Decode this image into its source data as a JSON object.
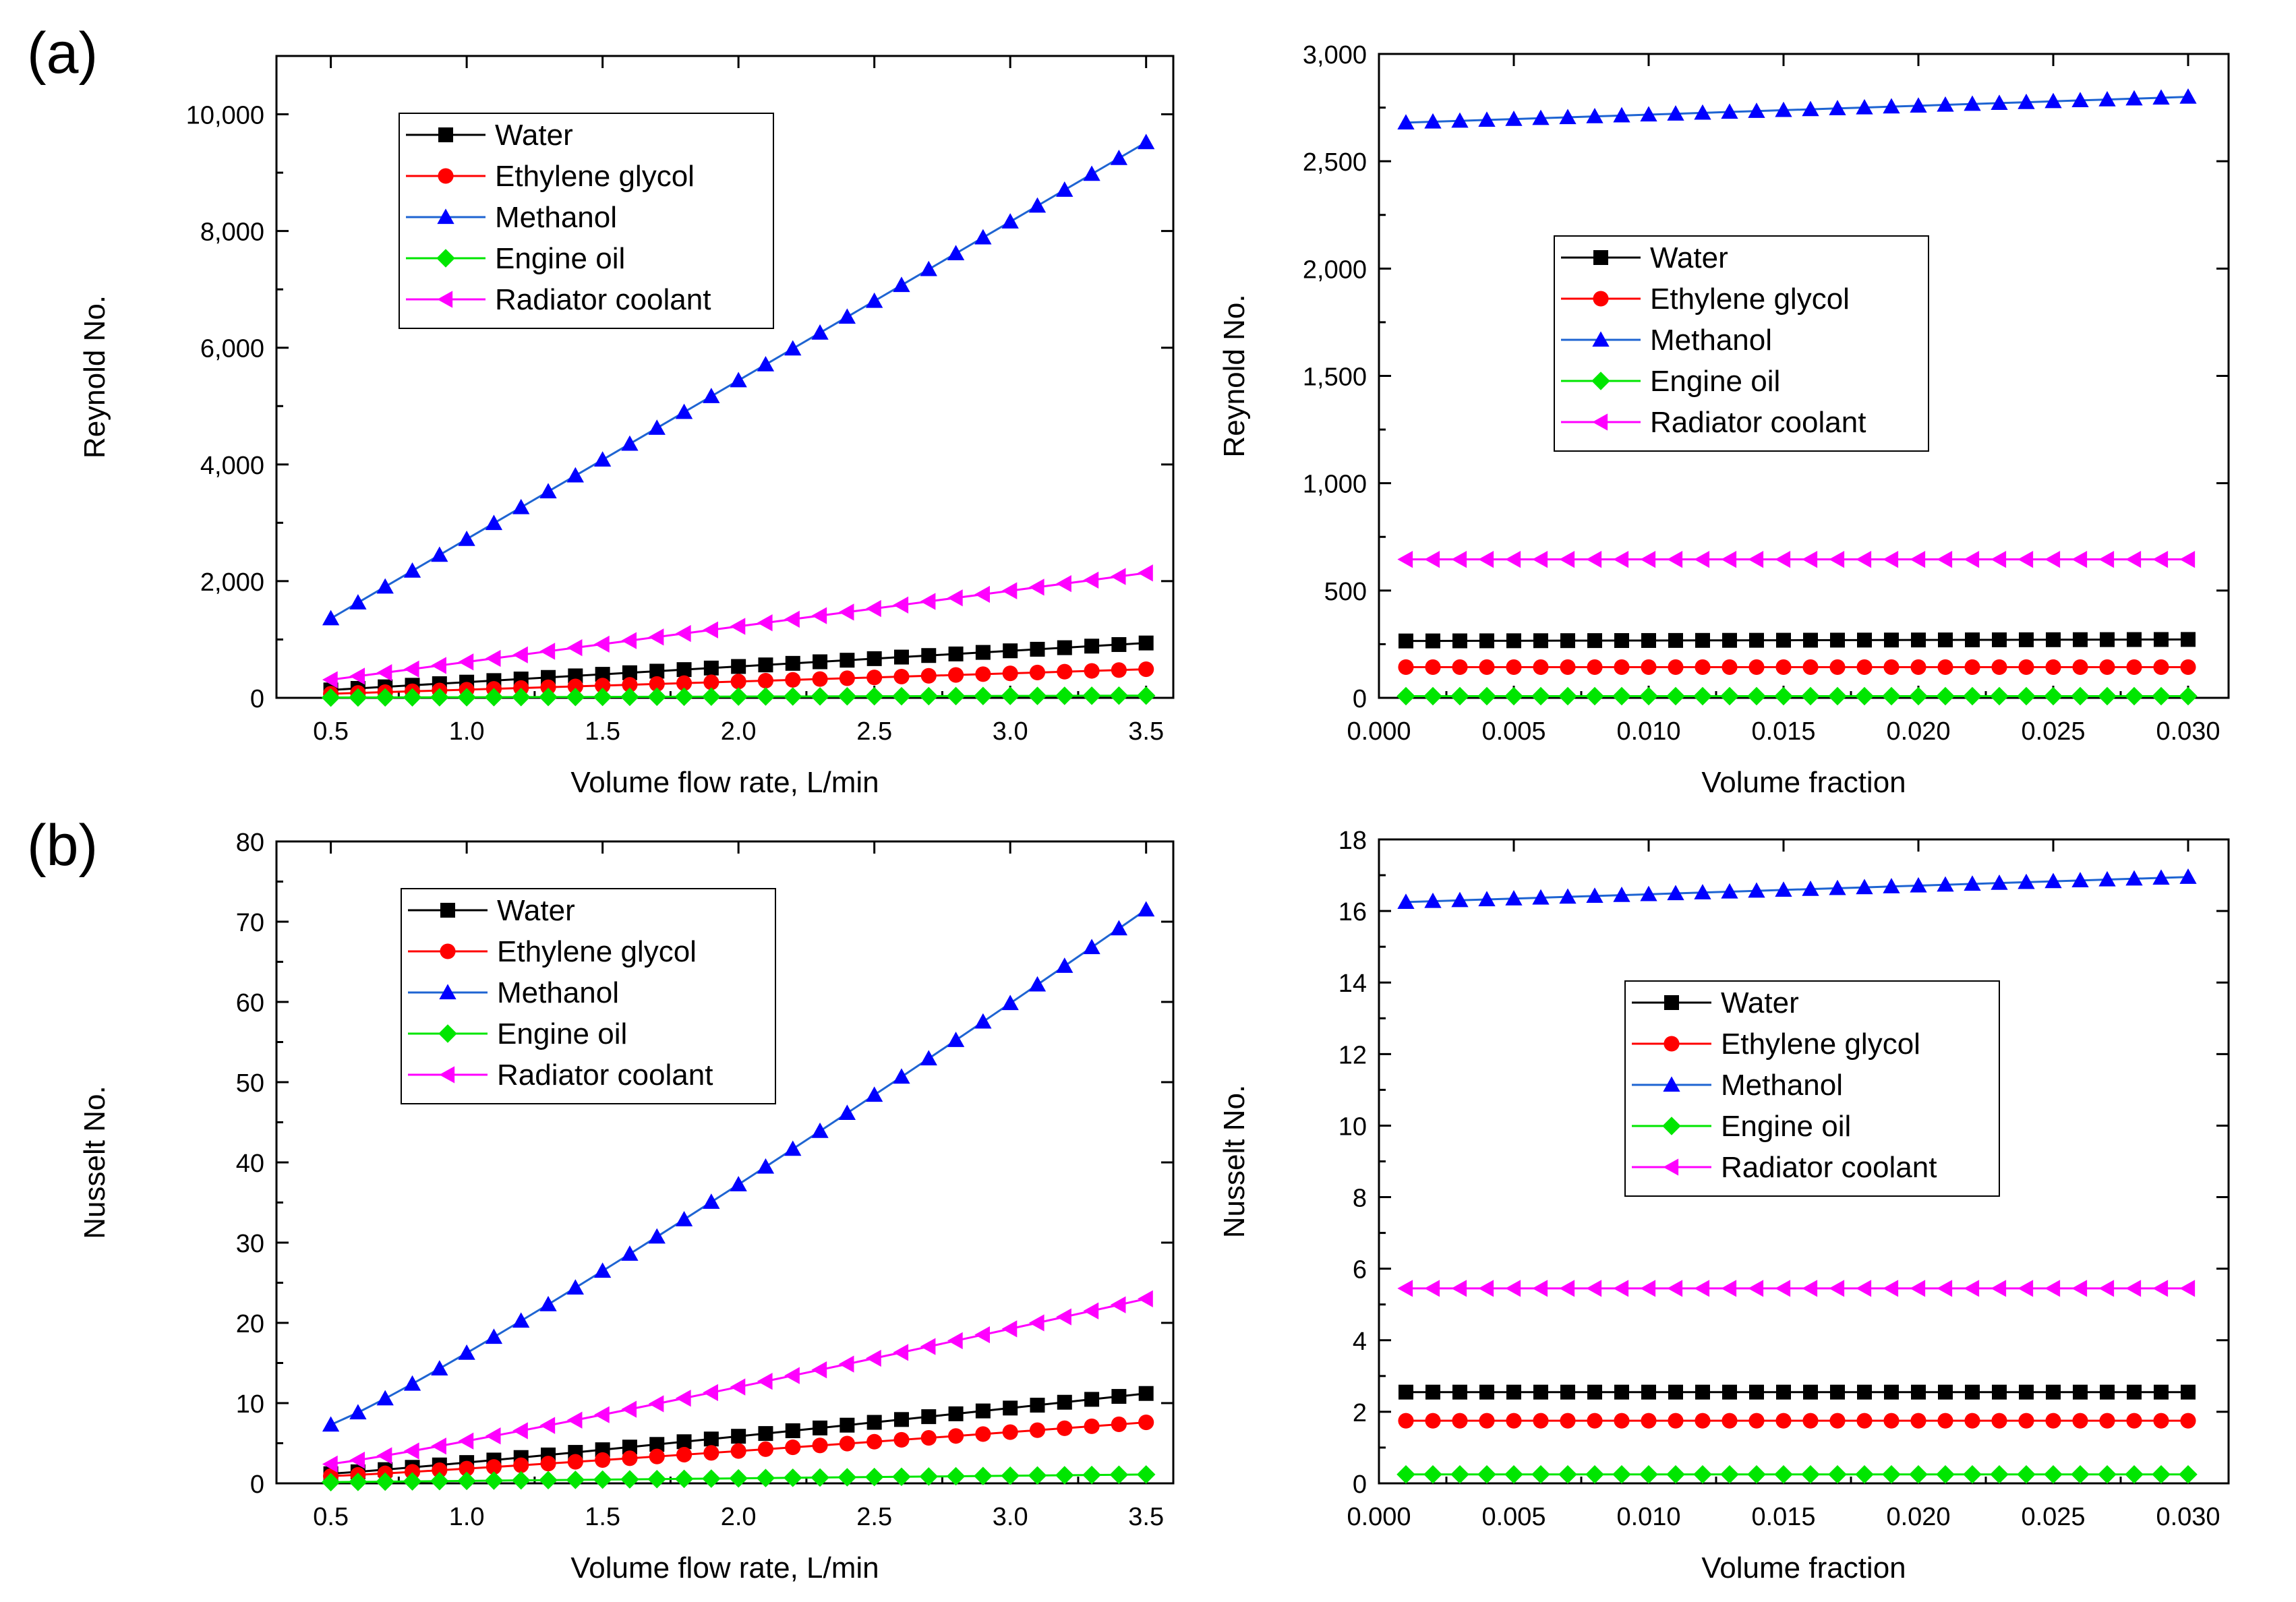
{
  "figure": {
    "panel_labels": [
      "(a)",
      "(b)"
    ]
  },
  "legend_entries": [
    {
      "name": "Water",
      "color": "#000000",
      "marker": "square"
    },
    {
      "name": "Ethylene glycol",
      "color": "#ff0000",
      "marker": "circle"
    },
    {
      "name": "Methanol",
      "color": "#0000ff",
      "line_color": "#1e64d2",
      "marker": "triangle-up"
    },
    {
      "name": "Engine oil",
      "color": "#00e600",
      "marker": "diamond"
    },
    {
      "name": "Radiator coolant",
      "color": "#ff00ff",
      "marker": "triangle-left"
    }
  ],
  "chart_data": [
    {
      "id": "reynolds-vs-flow",
      "type": "line",
      "xlabel": "Volume flow rate, L/min",
      "ylabel": "Reynold No.",
      "xlim": [
        0.3,
        3.6
      ],
      "ylim": [
        0,
        11000
      ],
      "xticks": [
        0.5,
        1.0,
        1.5,
        2.0,
        2.5,
        3.0,
        3.5
      ],
      "xtick_labels": [
        "0.5",
        "1.0",
        "1.5",
        "2.0",
        "2.5",
        "3.0",
        "3.5"
      ],
      "yticks": [
        0,
        2000,
        4000,
        6000,
        8000,
        10000
      ],
      "ytick_labels": [
        "0",
        "2,000",
        "4,000",
        "6,000",
        "8,000",
        "10,000"
      ],
      "legend_position": "top-left",
      "x_range": [
        0.5,
        3.5
      ],
      "n_points": 31,
      "series": [
        {
          "name": "Water",
          "start": 135,
          "end": 940
        },
        {
          "name": "Ethylene glycol",
          "start": 70,
          "end": 490
        },
        {
          "name": "Methanol",
          "start": 1360,
          "end": 9520
        },
        {
          "name": "Engine oil",
          "start": 5,
          "end": 38
        },
        {
          "name": "Radiator coolant",
          "start": 310,
          "end": 2140
        }
      ]
    },
    {
      "id": "reynolds-vs-fraction",
      "type": "line",
      "xlabel": "Volume fraction",
      "ylabel": "Reynold No.",
      "xlim": [
        0.0,
        0.0315
      ],
      "ylim": [
        0,
        3000
      ],
      "xticks": [
        0.0,
        0.005,
        0.01,
        0.015,
        0.02,
        0.025,
        0.03
      ],
      "xtick_labels": [
        "0.000",
        "0.005",
        "0.010",
        "0.015",
        "0.020",
        "0.025",
        "0.030"
      ],
      "yticks": [
        0,
        500,
        1000,
        1500,
        2000,
        2500,
        3000
      ],
      "ytick_labels": [
        "0",
        "500",
        "1,000",
        "1,500",
        "2,000",
        "2,500",
        "3,000"
      ],
      "legend_position": "center-left",
      "x_range": [
        0.001,
        0.03
      ],
      "n_points": 30,
      "series": [
        {
          "name": "Water",
          "start": 265,
          "end": 272
        },
        {
          "name": "Ethylene glycol",
          "start": 143,
          "end": 143
        },
        {
          "name": "Methanol",
          "start": 2680,
          "end": 2800
        },
        {
          "name": "Engine oil",
          "start": 8,
          "end": 8
        },
        {
          "name": "Radiator coolant",
          "start": 645,
          "end": 645
        }
      ]
    },
    {
      "id": "nusselt-vs-flow",
      "type": "line",
      "xlabel": "Volume flow rate, L/min",
      "ylabel": "Nusselt No.",
      "xlim": [
        0.3,
        3.6
      ],
      "ylim": [
        0,
        80
      ],
      "xticks": [
        0.5,
        1.0,
        1.5,
        2.0,
        2.5,
        3.0,
        3.5
      ],
      "xtick_labels": [
        "0.5",
        "1.0",
        "1.5",
        "2.0",
        "2.5",
        "3.0",
        "3.5"
      ],
      "yticks": [
        0,
        10,
        20,
        30,
        40,
        50,
        60,
        70,
        80
      ],
      "ytick_labels": [
        "0",
        "10",
        "20",
        "30",
        "40",
        "50",
        "60",
        "70",
        "80"
      ],
      "legend_position": "top-left",
      "x_range": [
        0.5,
        3.5
      ],
      "n_points": 31,
      "series": [
        {
          "name": "Water",
          "start": 1.2,
          "end": 11.2,
          "exponent": 1.1
        },
        {
          "name": "Ethylene glycol",
          "start": 0.9,
          "end": 7.6,
          "exponent": 1.1
        },
        {
          "name": "Methanol",
          "start": 7.3,
          "end": 71.5,
          "exponent": 1.1
        },
        {
          "name": "Engine oil",
          "start": 0.15,
          "end": 1.1,
          "exponent": 1.0
        },
        {
          "name": "Radiator coolant",
          "start": 2.4,
          "end": 23.0,
          "exponent": 1.1
        }
      ]
    },
    {
      "id": "nusselt-vs-fraction",
      "type": "line",
      "xlabel": "Volume fraction",
      "ylabel": "Nusselt No.",
      "xlim": [
        0.0,
        0.0315
      ],
      "ylim": [
        0,
        18
      ],
      "xticks": [
        0.0,
        0.005,
        0.01,
        0.015,
        0.02,
        0.025,
        0.03
      ],
      "xtick_labels": [
        "0.000",
        "0.005",
        "0.010",
        "0.015",
        "0.020",
        "0.025",
        "0.030"
      ],
      "yticks": [
        0,
        2,
        4,
        6,
        8,
        10,
        12,
        14,
        16,
        18
      ],
      "ytick_labels": [
        "0",
        "2",
        "4",
        "6",
        "8",
        "10",
        "12",
        "14",
        "16",
        "18"
      ],
      "legend_position": "center",
      "x_range": [
        0.001,
        0.03
      ],
      "n_points": 30,
      "series": [
        {
          "name": "Water",
          "start": 2.55,
          "end": 2.55
        },
        {
          "name": "Ethylene glycol",
          "start": 1.75,
          "end": 1.75
        },
        {
          "name": "Methanol",
          "start": 16.25,
          "end": 16.95
        },
        {
          "name": "Engine oil",
          "start": 0.25,
          "end": 0.25
        },
        {
          "name": "Radiator coolant",
          "start": 5.45,
          "end": 5.45
        }
      ]
    }
  ]
}
